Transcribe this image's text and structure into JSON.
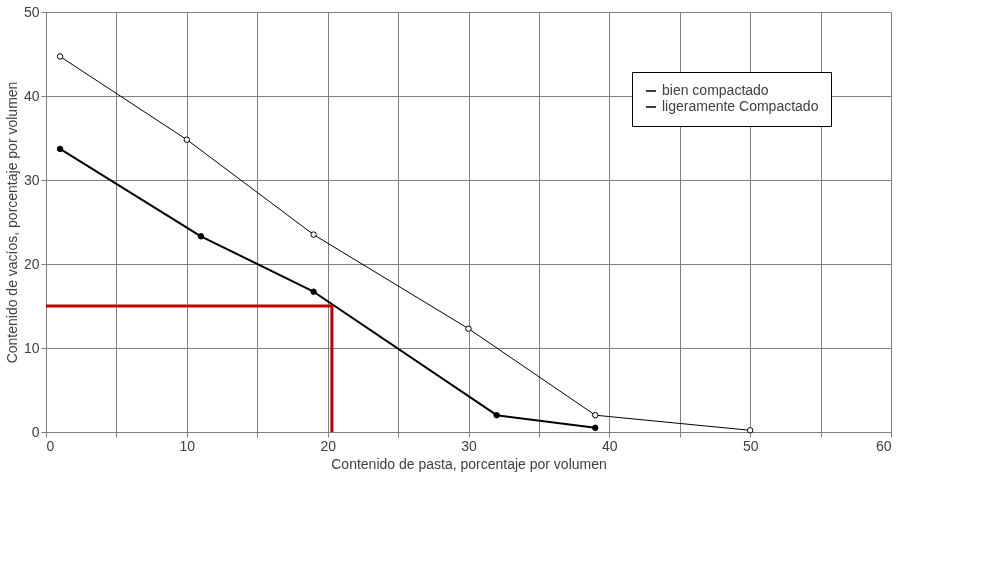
{
  "chart_data": {
    "type": "line",
    "xlabel": "Contenido de pasta, porcentaje por volumen",
    "ylabel": "Contenido de vacíos, porcentaje por volumen",
    "xlim": [
      0,
      60
    ],
    "xticks": [
      0,
      {
        "value": 5,
        "label": null
      },
      10,
      {
        "value": 15,
        "label": null
      },
      20,
      {
        "value": 25,
        "label": null
      },
      30,
      {
        "value": 35,
        "label": null
      },
      40,
      {
        "value": 45,
        "label": null
      },
      50,
      {
        "value": 55,
        "label": null
      },
      60
    ],
    "ylim": [
      0,
      50
    ],
    "yticks": [
      0,
      10,
      20,
      30,
      40,
      50
    ],
    "grid": true,
    "legend": "top right",
    "marker": "circle",
    "series": [
      {
        "name": "bien compactado",
        "color": "#000000",
        "x": [
          1,
          11,
          19,
          32,
          39
        ],
        "values": [
          33.7,
          23.3,
          16.7,
          2,
          0.5
        ]
      },
      {
        "name": "ligeramente Compactado",
        "color": "#000000",
        "x": [
          1,
          10,
          19,
          30,
          39,
          50
        ],
        "values": [
          44.7,
          34.8,
          23.5,
          12.3,
          2,
          0.2
        ]
      },
      {
        "color": "#c00000",
        "x": [
          0,
          20.3,
          20.3
        ],
        "values": [
          15,
          15,
          0
        ],
        "marker": "none"
      }
    ]
  }
}
